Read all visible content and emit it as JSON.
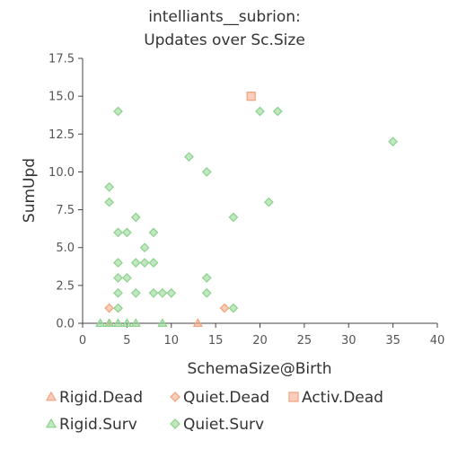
{
  "chart_data": {
    "type": "scatter",
    "title_lines": [
      "intelliants__subrion:",
      "Updates over Sc.Size"
    ],
    "xlabel": "SchemaSize@Birth",
    "ylabel": "SumUpd",
    "xlim": [
      0,
      40
    ],
    "ylim": [
      0,
      17.5
    ],
    "xticks": [
      "0",
      "5",
      "10",
      "15",
      "20",
      "25",
      "30",
      "35",
      "40"
    ],
    "yticks": [
      "0.0",
      "2.5",
      "5.0",
      "7.5",
      "10.0",
      "12.5",
      "15.0",
      "17.5"
    ],
    "grid": false,
    "legend_position": "bottom",
    "series": [
      {
        "name": "Rigid.Dead",
        "marker": "triangle",
        "color": "#f4a582",
        "points": [
          [
            3,
            0
          ],
          [
            13,
            0
          ]
        ]
      },
      {
        "name": "Quiet.Dead",
        "marker": "diamond",
        "color": "#f4a582",
        "points": [
          [
            3,
            1
          ],
          [
            16,
            1
          ]
        ]
      },
      {
        "name": "Activ.Dead",
        "marker": "square",
        "color": "#f4a582",
        "points": [
          [
            19,
            15
          ]
        ]
      },
      {
        "name": "Rigid.Surv",
        "marker": "triangle",
        "color": "#8fd48f",
        "points": [
          [
            2,
            0
          ],
          [
            3,
            0
          ],
          [
            4,
            0
          ],
          [
            5,
            0
          ],
          [
            6,
            0
          ],
          [
            9,
            0
          ]
        ]
      },
      {
        "name": "Quiet.Surv",
        "marker": "diamond",
        "color": "#8fd48f",
        "points": [
          [
            4,
            14
          ],
          [
            3,
            9
          ],
          [
            3,
            8
          ],
          [
            6,
            7
          ],
          [
            4,
            6
          ],
          [
            5,
            6
          ],
          [
            8,
            6
          ],
          [
            7,
            5
          ],
          [
            4,
            4
          ],
          [
            6,
            4
          ],
          [
            7,
            4
          ],
          [
            8,
            4
          ],
          [
            4,
            3
          ],
          [
            5,
            3
          ],
          [
            14,
            3
          ],
          [
            4,
            2
          ],
          [
            6,
            2
          ],
          [
            8,
            2
          ],
          [
            9,
            2
          ],
          [
            10,
            2
          ],
          [
            14,
            2
          ],
          [
            4,
            1
          ],
          [
            17,
            1
          ],
          [
            12,
            11
          ],
          [
            14,
            10
          ],
          [
            17,
            7
          ],
          [
            21,
            8
          ],
          [
            20,
            14
          ],
          [
            22,
            14
          ],
          [
            35,
            12
          ]
        ]
      }
    ]
  }
}
